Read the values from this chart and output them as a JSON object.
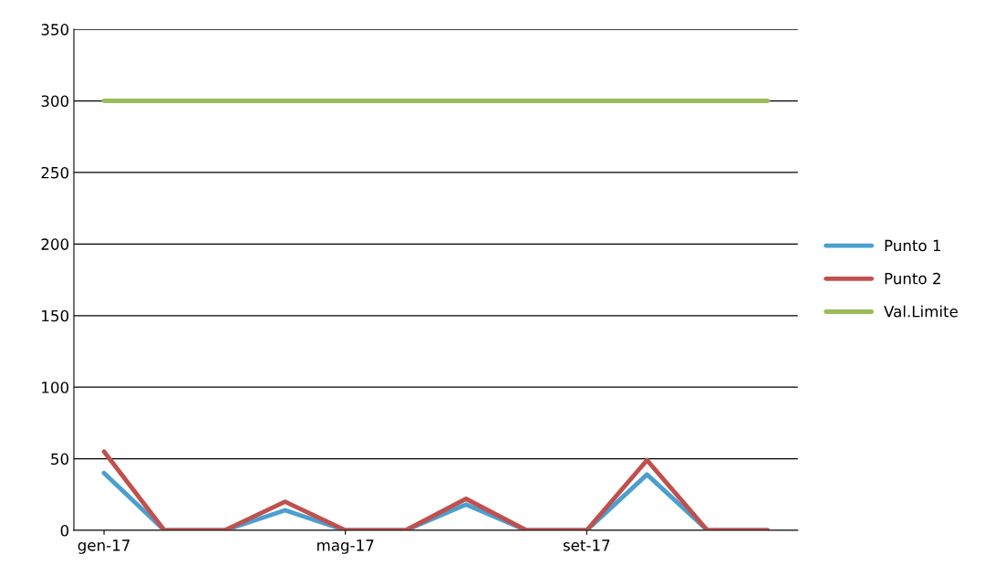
{
  "chart_data": {
    "type": "line",
    "categories": [
      "gen-17",
      null,
      null,
      null,
      "mag-17",
      null,
      null,
      null,
      "set-17",
      null,
      null,
      null
    ],
    "series": [
      {
        "name": "Punto 1",
        "color": "#4a9fd0",
        "values": [
          40,
          0,
          0,
          14,
          0,
          0,
          18,
          0,
          0,
          39,
          0,
          0
        ]
      },
      {
        "name": "Punto 2",
        "color": "#c0504d",
        "values": [
          55,
          0,
          0,
          20,
          0,
          0,
          22,
          0,
          0,
          49,
          0,
          0
        ]
      },
      {
        "name": "Val.Limite",
        "color": "#9bbb59",
        "values": [
          300,
          300,
          300,
          300,
          300,
          300,
          300,
          300,
          300,
          300,
          300,
          300
        ]
      }
    ],
    "ylim": [
      0,
      350
    ],
    "yticks": [
      0,
      50,
      100,
      150,
      200,
      250,
      300,
      350
    ],
    "grid": "y",
    "legend": "right",
    "marker": "none",
    "line_style": "solid"
  }
}
